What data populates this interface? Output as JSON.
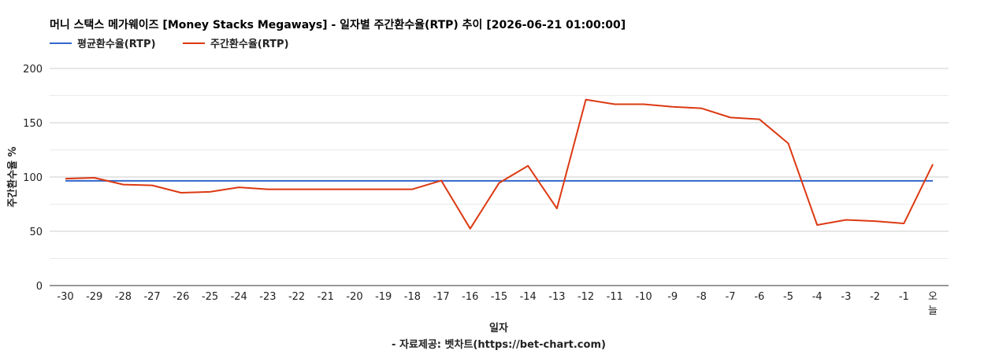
{
  "chart_data": {
    "type": "line",
    "title": "머니 스택스 메가웨이즈 [Money Stacks Megaways] - 일자별 주간환수율(RTP) 추이 [2026-06-21 01:00:00]",
    "xlabel": "일자",
    "ylabel": "주간환수율 %",
    "credit": "- 자료제공: 벳차트(https://bet-chart.com)",
    "ylim": [
      0,
      200
    ],
    "yticks": [
      "0",
      "50",
      "100",
      "150",
      "200"
    ],
    "categories": [
      "-30",
      "-29",
      "-28",
      "-27",
      "-26",
      "-25",
      "-24",
      "-23",
      "-22",
      "-21",
      "-20",
      "-19",
      "-18",
      "-17",
      "-16",
      "-15",
      "-14",
      "-13",
      "-12",
      "-11",
      "-10",
      "-9",
      "-8",
      "-7",
      "-6",
      "-5",
      "-4",
      "-3",
      "-2",
      "-1",
      "오늘"
    ],
    "legend_position": "top-left",
    "grid": true,
    "series": [
      {
        "name": "평균환수율(RTP)",
        "color": "#3366cc",
        "values": [
          96.5,
          96.5,
          96.5,
          96.5,
          96.5,
          96.5,
          96.5,
          96.5,
          96.5,
          96.5,
          96.5,
          96.5,
          96.5,
          96.5,
          96.5,
          96.5,
          96.5,
          96.5,
          96.5,
          96.5,
          96.5,
          96.5,
          96.5,
          96.5,
          96.5,
          96.5,
          96.5,
          96.5,
          96.5,
          96.5,
          96.5
        ]
      },
      {
        "name": "주간환수율(RTP)",
        "color": "#dc3912",
        "values": [
          98.5,
          99.3,
          93,
          92.3,
          85.5,
          86.3,
          90.5,
          88.7,
          88.7,
          88.7,
          88.7,
          88.7,
          88.7,
          96.7,
          52.4,
          94.5,
          110.3,
          71,
          171.3,
          167,
          167,
          164.7,
          163.3,
          154.8,
          153.2,
          131,
          55.8,
          60.5,
          59.3,
          57.2,
          111.7
        ]
      }
    ]
  }
}
